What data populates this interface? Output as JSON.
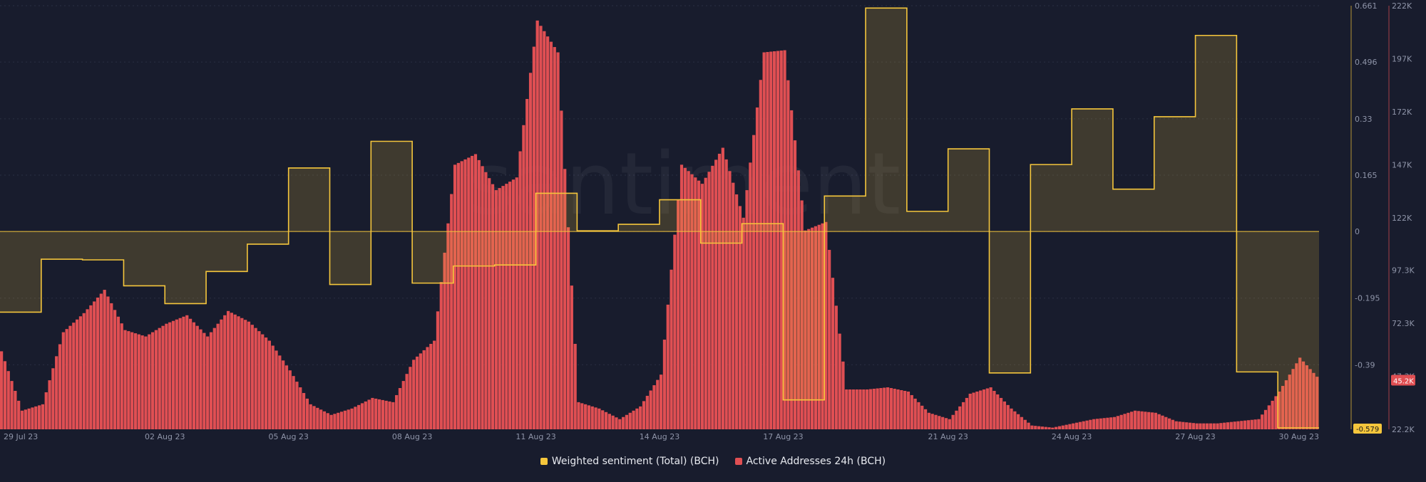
{
  "watermark": "santiment",
  "colors": {
    "sentiment": "#f5c63c",
    "addresses": "#e04f53",
    "background": "#181c2d"
  },
  "chart_data": {
    "type": "bar",
    "x_range": [
      "29 Jul 23",
      "30 Aug 23"
    ],
    "x_ticks": [
      "29 Jul 23",
      "02 Aug 23",
      "05 Aug 23",
      "08 Aug 23",
      "11 Aug 23",
      "14 Aug 23",
      "17 Aug 23",
      "21 Aug 23",
      "24 Aug 23",
      "27 Aug 23",
      "30 Aug 23"
    ],
    "y_left": {
      "label": "",
      "range": [
        -0.579,
        0.661
      ],
      "ticks": [
        "0.661",
        "0.496",
        "0.33",
        "0.165",
        "0",
        "-0.195",
        "-0.39"
      ],
      "current_value": "-0.579"
    },
    "y_right": {
      "label": "",
      "range": [
        22200,
        222000
      ],
      "ticks": [
        "222K",
        "197K",
        "172K",
        "147K",
        "122K",
        "97.3K",
        "72.3K",
        "47.3K",
        "22.2K"
      ],
      "current_value": "45.2K"
    },
    "legend_position": "bottom-center",
    "series": [
      {
        "name": "Weighted sentiment (Total) (BCH)",
        "kind": "step-area",
        "color": "#f5c63c",
        "points": [
          [
            "29 Jul 23",
            -0.236
          ],
          [
            "30 Jul 23",
            -0.081
          ],
          [
            "31 Jul 23",
            -0.083
          ],
          [
            "01 Aug 23",
            -0.159
          ],
          [
            "02 Aug 23",
            -0.211
          ],
          [
            "03 Aug 23",
            -0.117
          ],
          [
            "04 Aug 23",
            -0.037
          ],
          [
            "05 Aug 23",
            0.186
          ],
          [
            "06 Aug 23",
            -0.155
          ],
          [
            "07 Aug 23",
            0.264
          ],
          [
            "08 Aug 23",
            -0.151
          ],
          [
            "09 Aug 23",
            -0.101
          ],
          [
            "10 Aug 23",
            -0.098
          ],
          [
            "11 Aug 23",
            0.112
          ],
          [
            "12 Aug 23",
            0.002
          ],
          [
            "13 Aug 23",
            0.021
          ],
          [
            "14 Aug 23",
            0.093
          ],
          [
            "15 Aug 23",
            -0.034
          ],
          [
            "16 Aug 23",
            0.023
          ],
          [
            "17 Aug 23",
            -0.493
          ],
          [
            "18 Aug 23",
            0.104
          ],
          [
            "19 Aug 23",
            0.654
          ],
          [
            "20 Aug 23",
            0.059
          ],
          [
            "21 Aug 23",
            0.242
          ],
          [
            "22 Aug 23",
            -0.414
          ],
          [
            "23 Aug 23",
            0.196
          ],
          [
            "24 Aug 23",
            0.359
          ],
          [
            "25 Aug 23",
            0.124
          ],
          [
            "26 Aug 23",
            0.336
          ],
          [
            "27 Aug 23",
            0.574
          ],
          [
            "28 Aug 23",
            -0.411
          ],
          [
            "29 Aug 23",
            -0.575
          ]
        ]
      },
      {
        "name": "Active Addresses 24h (BCH)",
        "kind": "bar",
        "color": "#e04f53",
        "points": [
          [
            "29 Jul 23",
            59000
          ],
          [
            "29 Jul 23 12:00",
            31000
          ],
          [
            "30 Jul 23",
            34000
          ],
          [
            "30 Jul 23 12:00",
            68000
          ],
          [
            "31 Jul 23",
            77000
          ],
          [
            "31 Jul 23 12:00",
            88000
          ],
          [
            "01 Aug 23",
            69000
          ],
          [
            "01 Aug 23 12:00",
            66000
          ],
          [
            "02 Aug 23",
            72000
          ],
          [
            "02 Aug 23 12:00",
            76000
          ],
          [
            "03 Aug 23",
            66000
          ],
          [
            "03 Aug 23 12:00",
            78000
          ],
          [
            "04 Aug 23",
            73000
          ],
          [
            "04 Aug 23 12:00",
            64000
          ],
          [
            "05 Aug 23",
            50000
          ],
          [
            "05 Aug 23 12:00",
            34000
          ],
          [
            "06 Aug 23",
            29000
          ],
          [
            "06 Aug 23 12:00",
            32000
          ],
          [
            "07 Aug 23",
            37000
          ],
          [
            "07 Aug 23 12:00",
            35000
          ],
          [
            "08 Aug 23",
            55000
          ],
          [
            "08 Aug 23 12:00",
            64000
          ],
          [
            "09 Aug 23",
            147000
          ],
          [
            "09 Aug 23 12:00",
            152000
          ],
          [
            "10 Aug 23",
            135000
          ],
          [
            "10 Aug 23 12:00",
            141000
          ],
          [
            "11 Aug 23",
            215000
          ],
          [
            "11 Aug 23 12:00",
            200000
          ],
          [
            "12 Aug 23",
            35000
          ],
          [
            "12 Aug 23 12:00",
            32000
          ],
          [
            "13 Aug 23",
            27000
          ],
          [
            "13 Aug 23 12:00",
            33000
          ],
          [
            "14 Aug 23",
            48000
          ],
          [
            "14 Aug 23 12:00",
            147000
          ],
          [
            "15 Aug 23",
            138000
          ],
          [
            "15 Aug 23 12:00",
            155000
          ],
          [
            "16 Aug 23",
            122000
          ],
          [
            "16 Aug 23 12:00",
            200000
          ],
          [
            "17 Aug 23",
            201000
          ],
          [
            "17 Aug 23 12:00",
            116000
          ],
          [
            "18 Aug 23",
            120000
          ],
          [
            "18 Aug 23 12:00",
            41000
          ],
          [
            "19 Aug 23",
            41000
          ],
          [
            "19 Aug 23 12:00",
            42000
          ],
          [
            "20 Aug 23",
            40000
          ],
          [
            "20 Aug 23 12:00",
            30000
          ],
          [
            "21 Aug 23",
            27000
          ],
          [
            "21 Aug 23 12:00",
            39000
          ],
          [
            "22 Aug 23",
            42000
          ],
          [
            "22 Aug 23 12:00",
            32000
          ],
          [
            "23 Aug 23",
            24000
          ],
          [
            "23 Aug 23 12:00",
            23000
          ],
          [
            "24 Aug 23",
            25000
          ],
          [
            "24 Aug 23 12:00",
            27000
          ],
          [
            "25 Aug 23",
            28000
          ],
          [
            "25 Aug 23 12:00",
            31000
          ],
          [
            "26 Aug 23",
            30000
          ],
          [
            "26 Aug 23 12:00",
            26000
          ],
          [
            "27 Aug 23",
            25000
          ],
          [
            "27 Aug 23 12:00",
            25000
          ],
          [
            "28 Aug 23",
            26000
          ],
          [
            "28 Aug 23 12:00",
            27000
          ],
          [
            "29 Aug 23",
            40000
          ],
          [
            "29 Aug 23 12:00",
            56000
          ],
          [
            "30 Aug 23",
            45200
          ]
        ]
      }
    ]
  }
}
